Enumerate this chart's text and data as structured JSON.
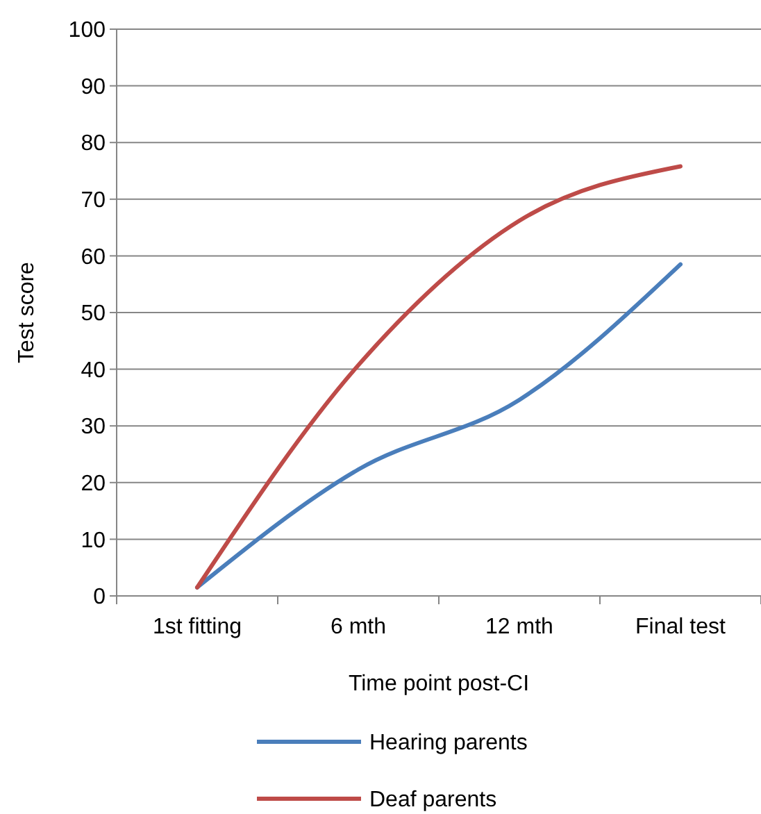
{
  "chart_data": {
    "type": "line",
    "xlabel": "Time point post-CI",
    "ylabel": "Test score",
    "categories": [
      "1st fitting",
      "6 mth",
      "12 mth",
      "Final test"
    ],
    "series": [
      {
        "name": "Hearing parents",
        "color": "#4a7ebb",
        "values": [
          1.5,
          22.3,
          34.6,
          58.5
        ]
      },
      {
        "name": "Deaf parents",
        "color": "#be4b48",
        "values": [
          1.5,
          40.7,
          66.2,
          75.8
        ]
      }
    ],
    "ylim": [
      0,
      100
    ],
    "yticks": [
      0,
      10,
      20,
      30,
      40,
      50,
      60,
      70,
      80,
      90,
      100
    ],
    "grid": "y",
    "legend": "bottom",
    "marker": "none",
    "line_style": "solid"
  }
}
